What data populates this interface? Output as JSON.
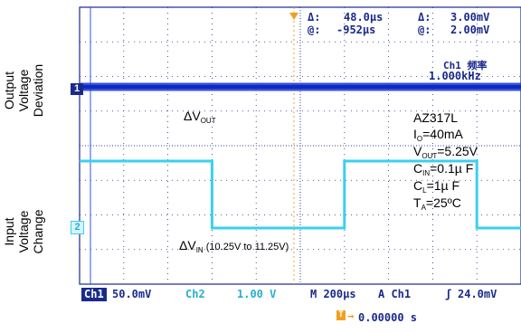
{
  "chart_data": {
    "type": "line",
    "y_labels": [
      "Output Voltage Deviation",
      "Input Voltage Change"
    ],
    "measurements": {
      "delta_time": "48.0µs",
      "at_time": "-952µs",
      "delta_volt": "3.00mV",
      "at_volt": "2.00mV",
      "delta_symbol": "Δ:",
      "at_symbol": "@:"
    },
    "freq_readout": {
      "label": "Ch1 频率",
      "value": "1.000kHz"
    },
    "channel_markers": {
      "ch1": "1",
      "ch2": "2"
    },
    "annotations": {
      "dvout": {
        "prefix": "ΔV",
        "sub": "OUT"
      },
      "dvin": {
        "prefix": "ΔV",
        "sub": "IN",
        "suffix": " (10.25V to 11.25V)"
      }
    },
    "conditions": {
      "part": "AZ317L",
      "io": {
        "main": "I",
        "sub": "O",
        "rest": "=40mA"
      },
      "vout": {
        "main": "V",
        "sub": "OUT",
        "rest": "=5.25V"
      },
      "cin": {
        "main": "C",
        "sub": "IN",
        "rest": "=0.1µ F"
      },
      "cl": {
        "main": "C",
        "sub": "L",
        "rest": "=1µ F"
      },
      "ta": {
        "main": "T",
        "sub": "A",
        "rest": "=25ºC"
      }
    },
    "status_bar": {
      "ch1_tag": "Ch1",
      "ch1_scale": "50.0mV",
      "ch2_tag": "Ch2",
      "ch2_scale": "1.00 V",
      "timebase": "M 200µs",
      "trigger": "A  Ch1",
      "trigger_level": "24.0mV",
      "trigger_offset": "0.00000 s"
    },
    "series": [
      {
        "channel": "Ch1",
        "color": "#1f3fd6",
        "x": [
          0,
          1000,
          2000
        ],
        "y": [
          0,
          0,
          0
        ]
      },
      {
        "channel": "Ch2",
        "color": "#3ad0f0",
        "x": [
          0,
          600,
          600,
          1200,
          1200,
          1800,
          1800,
          2000
        ],
        "y": [
          11.25,
          11.25,
          10.25,
          10.25,
          11.25,
          11.25,
          10.25,
          10.25
        ]
      }
    ],
    "x_range_us": [
      0,
      2000
    ],
    "colors": {
      "grid": "#1a2a8c",
      "trace1": "#1f3fd6",
      "trace2": "#3ad0f0"
    }
  }
}
